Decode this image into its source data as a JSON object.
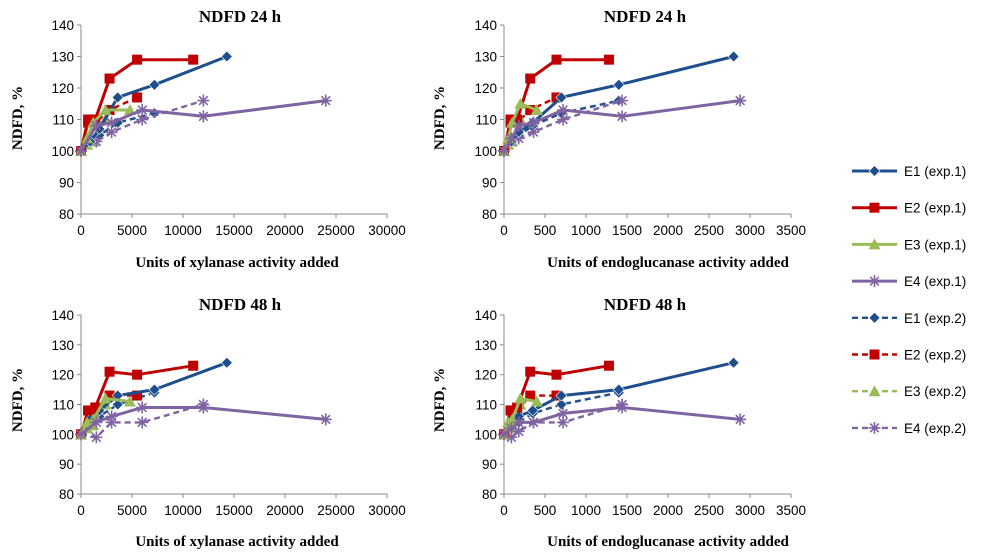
{
  "legend": [
    {
      "name": "E1 (exp.1)",
      "color": "#1F4E8C",
      "marker": "diamond",
      "dash": false
    },
    {
      "name": "E2 (exp.1)",
      "color": "#C00000",
      "marker": "square",
      "dash": false
    },
    {
      "name": "E3 (exp.1)",
      "color": "#9BBB59",
      "marker": "triangle",
      "dash": false
    },
    {
      "name": "E4 (exp.1)",
      "color": "#8064A2",
      "marker": "star",
      "dash": false
    },
    {
      "name": "E1 (exp.2)",
      "color": "#1F4E8C",
      "marker": "diamond",
      "dash": true
    },
    {
      "name": "E2 (exp.2)",
      "color": "#C00000",
      "marker": "square",
      "dash": true
    },
    {
      "name": "E3 (exp.2)",
      "color": "#9BBB59",
      "marker": "triangle",
      "dash": true
    },
    {
      "name": "E4 (exp.2)",
      "color": "#8064A2",
      "marker": "star",
      "dash": true
    }
  ],
  "chart_data": [
    {
      "type": "line",
      "title": "NDFD 24 h",
      "xlabel": "Units of xylanase activity added",
      "ylabel": "NDFD, %",
      "xlim": [
        0,
        30000
      ],
      "ylim": [
        80,
        140
      ],
      "xticks": [
        "0",
        "5000",
        "10000",
        "15000",
        "20000",
        "25000",
        "30000"
      ],
      "yticks": [
        "80",
        "90",
        "100",
        "110",
        "120",
        "130",
        "140"
      ],
      "series": [
        {
          "name": "E1 (exp.1)",
          "x": [
            0,
            900,
            1800,
            3600,
            7200,
            14300
          ],
          "y": [
            100,
            103,
            107,
            117,
            121,
            130
          ]
        },
        {
          "name": "E2 (exp.1)",
          "x": [
            0,
            700,
            1400,
            2800,
            5500,
            11000
          ],
          "y": [
            100,
            110,
            110,
            123,
            129,
            129
          ]
        },
        {
          "name": "E3 (exp.1)",
          "x": [
            0,
            600,
            1200,
            2400,
            4800
          ],
          "y": [
            100,
            104,
            109,
            113,
            113
          ]
        },
        {
          "name": "E4 (exp.1)",
          "x": [
            0,
            1500,
            3000,
            6000,
            12000,
            24000
          ],
          "y": [
            100,
            108,
            109,
            113,
            111,
            116
          ]
        },
        {
          "name": "E1 (exp.2)",
          "x": [
            0,
            900,
            1800,
            3600,
            7200
          ],
          "y": [
            100,
            104,
            105,
            109,
            112
          ]
        },
        {
          "name": "E2 (exp.2)",
          "x": [
            0,
            700,
            1400,
            2800,
            5500
          ],
          "y": [
            100,
            109,
            109,
            113,
            117
          ]
        },
        {
          "name": "E3 (exp.2)",
          "x": [
            0,
            600,
            1200,
            2400
          ],
          "y": [
            100,
            102,
            103,
            110
          ]
        },
        {
          "name": "E4 (exp.2)",
          "x": [
            0,
            1500,
            3000,
            6000,
            12000
          ],
          "y": [
            100,
            103,
            106,
            110,
            116
          ]
        }
      ]
    },
    {
      "type": "line",
      "title": "NDFD 24 h",
      "xlabel": "Units of endoglucanase activity added",
      "ylabel": "NDFD, %",
      "xlim": [
        0,
        3500
      ],
      "ylim": [
        80,
        140
      ],
      "xticks": [
        "0",
        "500",
        "1000",
        "1500",
        "2000",
        "2500",
        "3000",
        "3500"
      ],
      "yticks": [
        "80",
        "90",
        "100",
        "110",
        "120",
        "130",
        "140"
      ],
      "series": [
        {
          "name": "E1 (exp.1)",
          "x": [
            0,
            90,
            180,
            350,
            700,
            1400,
            2800
          ],
          "y": [
            100,
            103,
            106,
            109,
            117,
            121,
            130
          ]
        },
        {
          "name": "E2 (exp.1)",
          "x": [
            0,
            80,
            160,
            320,
            640,
            1280
          ],
          "y": [
            100,
            110,
            110,
            123,
            129,
            129
          ]
        },
        {
          "name": "E3 (exp.1)",
          "x": [
            0,
            50,
            100,
            200,
            400
          ],
          "y": [
            100,
            104,
            109,
            115,
            113
          ]
        },
        {
          "name": "E4 (exp.1)",
          "x": [
            0,
            90,
            180,
            360,
            720,
            1440,
            2880
          ],
          "y": [
            100,
            104,
            108,
            109,
            113,
            111,
            116
          ]
        },
        {
          "name": "E1 (exp.2)",
          "x": [
            0,
            90,
            180,
            350,
            700,
            1400
          ],
          "y": [
            100,
            104,
            105,
            108,
            112,
            116
          ]
        },
        {
          "name": "E2 (exp.2)",
          "x": [
            0,
            80,
            160,
            320,
            640
          ],
          "y": [
            100,
            109,
            109,
            113,
            117
          ]
        },
        {
          "name": "E3 (exp.2)",
          "x": [
            0,
            50,
            100,
            200
          ],
          "y": [
            100,
            102,
            103,
            110
          ]
        },
        {
          "name": "E4 (exp.2)",
          "x": [
            0,
            90,
            180,
            360,
            720,
            1440
          ],
          "y": [
            100,
            103,
            104,
            106,
            110,
            116
          ]
        }
      ]
    },
    {
      "type": "line",
      "title": "NDFD 48 h",
      "xlabel": "Units of xylanase activity added",
      "ylabel": "NDFD, %",
      "xlim": [
        0,
        30000
      ],
      "ylim": [
        80,
        140
      ],
      "xticks": [
        "0",
        "5000",
        "10000",
        "15000",
        "20000",
        "25000",
        "30000"
      ],
      "yticks": [
        "80",
        "90",
        "100",
        "110",
        "120",
        "130",
        "140"
      ],
      "series": [
        {
          "name": "E1 (exp.1)",
          "x": [
            0,
            900,
            1800,
            3600,
            7200,
            14300
          ],
          "y": [
            100,
            105,
            108,
            113,
            115,
            124
          ]
        },
        {
          "name": "E2 (exp.1)",
          "x": [
            0,
            700,
            1400,
            2800,
            5500,
            11000
          ],
          "y": [
            100,
            108,
            109,
            121,
            120,
            123
          ]
        },
        {
          "name": "E3 (exp.1)",
          "x": [
            0,
            600,
            1200,
            2400,
            4800
          ],
          "y": [
            100,
            104,
            105,
            112,
            111
          ]
        },
        {
          "name": "E4 (exp.1)",
          "x": [
            0,
            1500,
            3000,
            6000,
            12000,
            24000
          ],
          "y": [
            100,
            104,
            106,
            109,
            109,
            105
          ]
        },
        {
          "name": "E1 (exp.2)",
          "x": [
            0,
            900,
            1800,
            3600,
            7200
          ],
          "y": [
            100,
            103,
            106,
            110,
            114
          ]
        },
        {
          "name": "E2 (exp.2)",
          "x": [
            0,
            700,
            1400,
            2800,
            5500
          ],
          "y": [
            100,
            108,
            108,
            113,
            113
          ]
        },
        {
          "name": "E3 (exp.2)",
          "x": [
            0,
            600,
            1200,
            2400
          ],
          "y": [
            100,
            102,
            103,
            110
          ]
        },
        {
          "name": "E4 (exp.2)",
          "x": [
            0,
            1500,
            3000,
            6000,
            12000
          ],
          "y": [
            100,
            99,
            104,
            104,
            110
          ]
        }
      ]
    },
    {
      "type": "line",
      "title": "NDFD 48 h",
      "xlabel": "Units of endoglucanase activity added",
      "ylabel": "NDFD, %",
      "xlim": [
        0,
        3500
      ],
      "ylim": [
        80,
        140
      ],
      "xticks": [
        "0",
        "500",
        "1000",
        "1500",
        "2000",
        "2500",
        "3000",
        "3500"
      ],
      "yticks": [
        "80",
        "90",
        "100",
        "110",
        "120",
        "130",
        "140"
      ],
      "series": [
        {
          "name": "E1 (exp.1)",
          "x": [
            0,
            90,
            180,
            350,
            700,
            1400,
            2800
          ],
          "y": [
            100,
            105,
            106,
            108,
            113,
            115,
            124
          ]
        },
        {
          "name": "E2 (exp.1)",
          "x": [
            0,
            80,
            160,
            320,
            640,
            1280
          ],
          "y": [
            100,
            108,
            109,
            121,
            120,
            123
          ]
        },
        {
          "name": "E3 (exp.1)",
          "x": [
            0,
            50,
            100,
            200,
            400
          ],
          "y": [
            100,
            104,
            105,
            112,
            111
          ]
        },
        {
          "name": "E4 (exp.1)",
          "x": [
            0,
            90,
            180,
            360,
            720,
            1440,
            2880
          ],
          "y": [
            100,
            102,
            104,
            104,
            107,
            109,
            105
          ]
        },
        {
          "name": "E1 (exp.2)",
          "x": [
            0,
            90,
            180,
            350,
            700,
            1400
          ],
          "y": [
            100,
            103,
            104,
            107,
            110,
            114
          ]
        },
        {
          "name": "E2 (exp.2)",
          "x": [
            0,
            80,
            160,
            320,
            640
          ],
          "y": [
            100,
            108,
            108,
            113,
            113
          ]
        },
        {
          "name": "E3 (exp.2)",
          "x": [
            0,
            50,
            100,
            200
          ],
          "y": [
            100,
            102,
            103,
            110
          ]
        },
        {
          "name": "E4 (exp.2)",
          "x": [
            0,
            90,
            180,
            360,
            720,
            1440
          ],
          "y": [
            100,
            99,
            101,
            104,
            104,
            110
          ]
        }
      ]
    }
  ]
}
